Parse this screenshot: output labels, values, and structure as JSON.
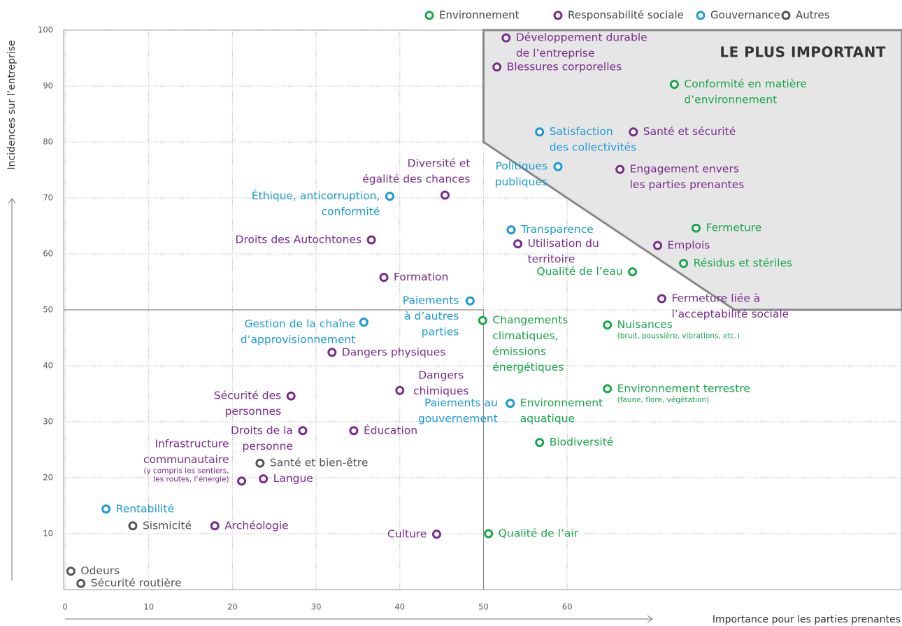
{
  "chart_data": {
    "type": "scatter",
    "xlabel": "Importance pour les parties prenantes",
    "ylabel": "Incidences sur l’entreprise",
    "xlim": [
      0,
      100
    ],
    "ylim": [
      0,
      100
    ],
    "xticks": [
      0,
      10,
      20,
      30,
      40,
      50,
      60
    ],
    "yticks": [
      10,
      20,
      30,
      40,
      50,
      60,
      70,
      80,
      90,
      100
    ],
    "grid": true,
    "quadrant": {
      "x": 50,
      "y": 50
    },
    "region": {
      "label": "LE PLUS IMPORTANT",
      "points": [
        [
          50,
          100
        ],
        [
          50,
          80
        ],
        [
          80,
          50
        ],
        [
          100,
          50
        ],
        [
          100,
          100
        ]
      ]
    },
    "legend": "top-right",
    "series": [
      {
        "name": "Environnement",
        "color": "#1aa64a",
        "x": [
          72.8,
          75.4,
          73.9,
          67.8,
          49.9,
          64.8,
          64.8,
          53.2,
          56.7,
          50.6
        ],
        "values": [
          90.3,
          64.6,
          58.3,
          56.8,
          48.1,
          47.3,
          35.9,
          33.3,
          26.3,
          10.0
        ],
        "labels": [
          [
            "Conformité en matière",
            "d’environnement"
          ],
          [
            "Fermeture"
          ],
          [
            "Résidus et stériles"
          ],
          [
            "Qualité de l’eau"
          ],
          [
            "Changements",
            "climatiques,",
            "émissions",
            "énergétiques"
          ],
          [
            "Nuisances"
          ],
          [
            "Environnement terrestre"
          ],
          [
            "Environnement",
            "aquatique"
          ],
          [
            "Biodiversité"
          ],
          [
            "Qualité de l’air"
          ]
        ],
        "notes": [
          null,
          null,
          null,
          null,
          null,
          [
            "(bruit, poussière, vibrations, etc.)"
          ],
          [
            "(faune, flore, végétation)"
          ],
          null,
          null,
          null
        ]
      },
      {
        "name": "Responsabilité sociale",
        "color": "#7b2a8d",
        "x": [
          52.7,
          51.6,
          67.9,
          66.3,
          45.4,
          54.1,
          70.8,
          36.6,
          38.1,
          71.3,
          31.9,
          40.0,
          27.0,
          28.4,
          34.5,
          21.1,
          23.7,
          17.9,
          44.4
        ],
        "values": [
          98.6,
          93.4,
          81.8,
          75.1,
          70.5,
          61.8,
          61.5,
          62.5,
          55.8,
          52.0,
          42.4,
          35.6,
          34.6,
          28.4,
          28.4,
          19.4,
          19.8,
          11.4,
          9.9
        ],
        "labels": [
          [
            "Développement durable",
            "de l’entreprise"
          ],
          [
            "Blessures corporelles"
          ],
          [
            "Santé et sécurité"
          ],
          [
            "Engagement envers",
            "les parties prenantes"
          ],
          [
            "Diversité et",
            "égalité des chances"
          ],
          [
            "Utilisation du",
            "territoire"
          ],
          [
            "Emplois"
          ],
          [
            "Droits des Autochtones"
          ],
          [
            "Formation"
          ],
          [
            "Fermeture liée à",
            "l’acceptabilité sociale"
          ],
          [
            "Dangers physiques"
          ],
          [
            "Dangers",
            "chimiques"
          ],
          [
            "Sécurité des",
            "personnes"
          ],
          [
            "Droits de la",
            "personne"
          ],
          [
            "Éducation"
          ],
          [
            "Infrastructure",
            "communautaire"
          ],
          [
            "Langue"
          ],
          [
            "Archéologie"
          ],
          [
            "Culture"
          ]
        ],
        "notes": [
          null,
          null,
          null,
          null,
          null,
          null,
          null,
          null,
          null,
          null,
          null,
          null,
          null,
          null,
          null,
          [
            "(y compris les sentiers,",
            "les routes, l’énergie)"
          ],
          null,
          null,
          null
        ]
      },
      {
        "name": "Gouvernance",
        "color": "#1b9ad6",
        "x": [
          56.7,
          58.9,
          38.8,
          53.3,
          48.4,
          35.7,
          53.2,
          4.9
        ],
        "values": [
          81.8,
          75.6,
          70.3,
          64.3,
          51.6,
          47.8,
          33.3,
          14.4
        ],
        "labels": [
          [
            "Satisfaction",
            "des collectivités"
          ],
          [
            "Politiques",
            "publiques"
          ],
          [
            "Éthique, anticorruption,",
            "conformité"
          ],
          [
            "Transparence"
          ],
          [
            "Paiements",
            "à d’autres",
            "parties"
          ],
          [
            "Gestion de la chaîne",
            "d’approvisionnement"
          ],
          [
            "Paiements au",
            "gouvernement"
          ],
          [
            "Rentabilité"
          ]
        ],
        "notes": [
          null,
          null,
          null,
          null,
          null,
          null,
          null,
          null
        ]
      },
      {
        "name": "Autres",
        "color": "#555555",
        "x": [
          23.3,
          8.1,
          0.7,
          1.9
        ],
        "values": [
          22.6,
          11.4,
          3.3,
          1.1
        ],
        "labels": [
          [
            "Santé et bien-être"
          ],
          [
            "Sismicité"
          ],
          [
            "Odeurs"
          ],
          [
            "Sécurité routière"
          ]
        ],
        "notes": [
          null,
          null,
          null,
          null
        ]
      }
    ]
  }
}
